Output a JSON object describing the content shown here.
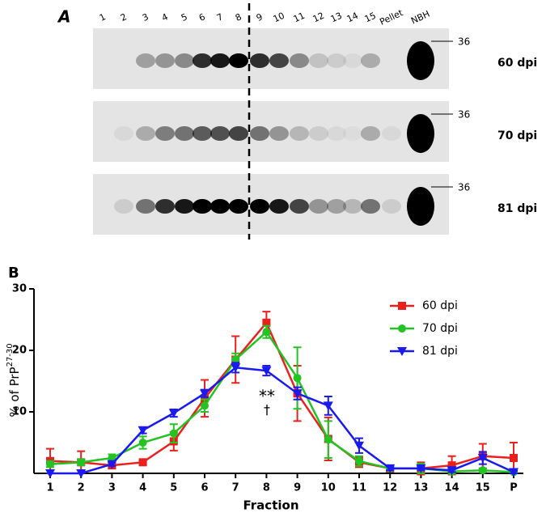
{
  "panel_a": {
    "label": "A",
    "lanes": [
      "1",
      "2",
      "3",
      "4",
      "5",
      "6",
      "7",
      "8",
      "9",
      "10",
      "11",
      "12",
      "13",
      "14",
      "15",
      "Pellet",
      "NBH"
    ],
    "marker": "36",
    "timepoints": [
      "60 dpi",
      "70 dpi",
      "81 dpi"
    ]
  },
  "chart_data": {
    "type": "line",
    "panel_label": "B",
    "x_label": "Fraction",
    "y_label": "% of PrP",
    "y_label_sup": "27-30",
    "categories": [
      "1",
      "2",
      "3",
      "4",
      "5",
      "6",
      "7",
      "8",
      "9",
      "10",
      "11",
      "12",
      "13",
      "14",
      "15",
      "P"
    ],
    "ylim": [
      0,
      30
    ],
    "yticks": [
      10,
      20,
      30
    ],
    "grid": false,
    "legend": "upper right",
    "annotations": [
      "**",
      "†"
    ],
    "series": [
      {
        "name": "60 dpi",
        "color": "#e8211f",
        "marker": "square",
        "values": [
          2.0,
          1.8,
          1.3,
          1.8,
          5.2,
          12.2,
          18.5,
          24.5,
          13.0,
          5.6,
          1.8,
          0.8,
          0.8,
          1.3,
          2.8,
          2.5
        ],
        "errors": [
          2.0,
          1.8,
          0.5,
          0.3,
          1.5,
          3.0,
          3.8,
          1.8,
          4.5,
          3.5,
          0.8,
          0.5,
          1.0,
          1.5,
          2.0,
          2.5
        ]
      },
      {
        "name": "70 dpi",
        "color": "#22c322",
        "marker": "circle",
        "values": [
          1.5,
          1.8,
          2.5,
          5.0,
          6.5,
          11.0,
          18.5,
          23.0,
          15.5,
          5.5,
          2.0,
          0.8,
          0.8,
          0.3,
          0.5,
          0.2
        ],
        "errors": [
          0.5,
          0.5,
          0.6,
          1.0,
          1.5,
          1.0,
          1.0,
          1.0,
          5.0,
          3.0,
          0.8,
          0.3,
          0.8,
          0.3,
          0.3,
          0.2
        ]
      },
      {
        "name": "81 dpi",
        "color": "#1a1aee",
        "marker": "triangle-down",
        "values": [
          0,
          0,
          1.5,
          7.0,
          9.8,
          13.0,
          17.2,
          16.7,
          13.0,
          11.0,
          4.5,
          0.8,
          0.8,
          0.5,
          2.5,
          0.2
        ],
        "errors": [
          0,
          0,
          0.3,
          0.5,
          0.6,
          0.6,
          0.8,
          0.8,
          1.0,
          1.5,
          1.2,
          0.3,
          0.3,
          0.3,
          1.0,
          0.2
        ]
      }
    ]
  }
}
